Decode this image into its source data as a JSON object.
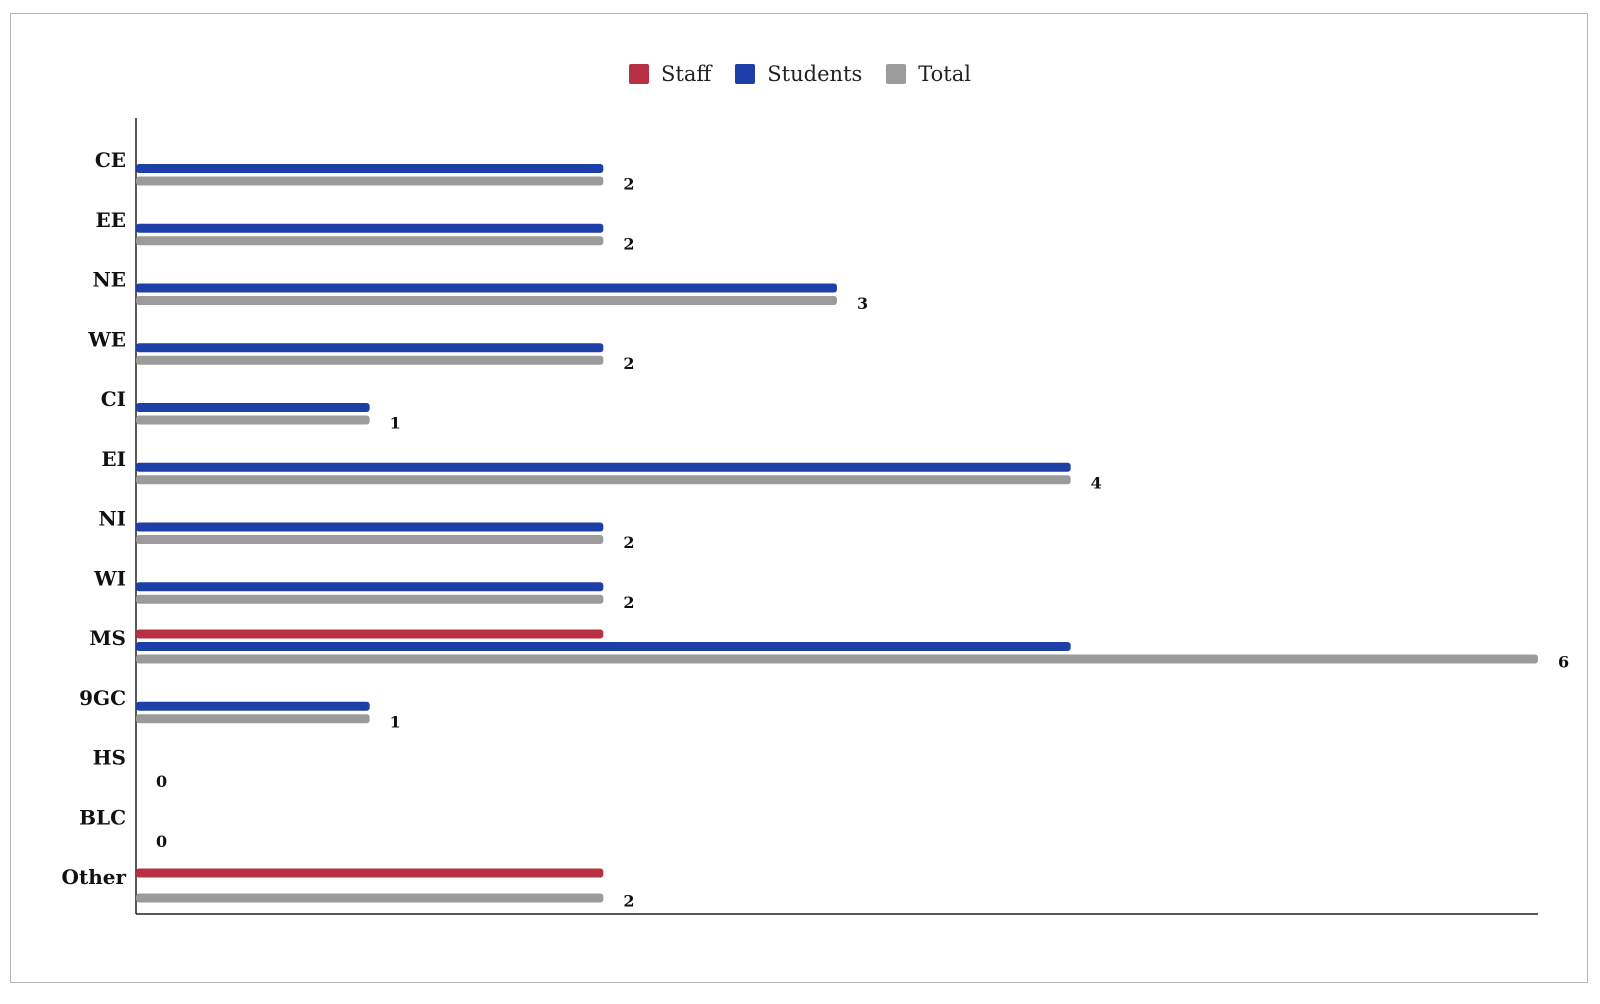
{
  "chart_data": {
    "type": "bar",
    "orientation": "horizontal",
    "categories": [
      "CE",
      "EE",
      "NE",
      "WE",
      "CI",
      "EI",
      "NI",
      "WI",
      "MS",
      "9GC",
      "HS",
      "BLC",
      "Other"
    ],
    "series": [
      {
        "name": "Staff",
        "color": "#b83043",
        "values": [
          0,
          0,
          0,
          0,
          0,
          0,
          0,
          0,
          2,
          0,
          0,
          0,
          2
        ]
      },
      {
        "name": "Students",
        "color": "#1c3fa8",
        "values": [
          2,
          2,
          3,
          2,
          1,
          4,
          2,
          2,
          4,
          1,
          0,
          0,
          0
        ]
      },
      {
        "name": "Total",
        "color": "#9b9b9b",
        "values": [
          2,
          2,
          3,
          2,
          1,
          4,
          2,
          2,
          6,
          1,
          0,
          0,
          2
        ]
      }
    ],
    "data_labels": [
      "2",
      "2",
      "3",
      "2",
      "1",
      "4",
      "2",
      "2",
      "6",
      "1",
      "0",
      "0",
      "2"
    ],
    "xlim": [
      0,
      6
    ],
    "legend": "top-center",
    "grid": false,
    "title": "",
    "xlabel": "",
    "ylabel": ""
  }
}
